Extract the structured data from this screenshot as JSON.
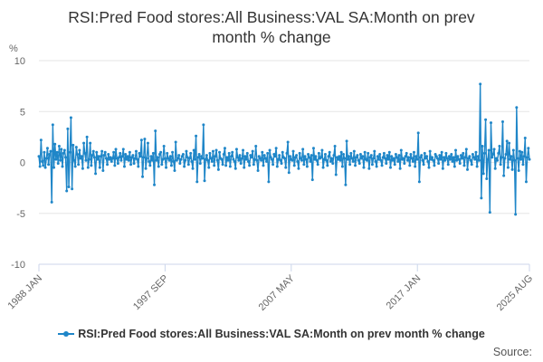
{
  "header": {
    "title_line1": "RSI:Pred Food stores:All Business:VAL SA:Month on prev",
    "title_line2": "month % change"
  },
  "footer": {
    "source_label": "Source:"
  },
  "colors": {
    "series": "#1f86c8",
    "grid": "#e6e6e6",
    "axis": "#ccd6eb"
  },
  "chart_data": {
    "type": "line",
    "title": "RSI:Pred Food stores:All Business:VAL SA:Month on prev month % change",
    "ylabel": "%",
    "xlabel": "",
    "ylim": [
      -10,
      10
    ],
    "yticks": [
      10,
      5,
      0,
      -5,
      -10
    ],
    "xlim": [
      "1988 JAN",
      "2025 AUG"
    ],
    "xticks": [
      {
        "label": "1988 JAN",
        "date": "1988-01"
      },
      {
        "label": "1997 SEP",
        "date": "1997-09"
      },
      {
        "label": "2007 MAY",
        "date": "2007-05"
      },
      {
        "label": "2017 JAN",
        "date": "2017-01"
      },
      {
        "label": "2025 AUG",
        "date": "2025-08"
      }
    ],
    "grid": true,
    "legend_position": "bottom",
    "series": [
      {
        "name": "RSI:Pred Food stores:All Business:VAL SA:Month on prev month % change",
        "start": "1988-01",
        "end": "2025-08",
        "frequency": "monthly",
        "values": [
          0.6,
          -0.4,
          2.2,
          0.1,
          -0.3,
          1.0,
          -0.5,
          0.4,
          1.4,
          -0.2,
          0.8,
          1.1,
          -3.9,
          3.7,
          -0.5,
          1.8,
          0.3,
          1.0,
          -0.1,
          1.6,
          0.2,
          1.3,
          -0.4,
          0.9,
          1.2,
          0.5,
          -2.8,
          3.3,
          -2.4,
          1.0,
          4.4,
          -2.6,
          1.7,
          0.2,
          -0.4,
          1.5,
          0.8,
          -0.2,
          1.2,
          0.4,
          0.6,
          -0.6,
          1.9,
          0.9,
          0.2,
          2.5,
          -0.5,
          0.3,
          1.9,
          -0.3,
          0.7,
          1.1,
          0.5,
          -1.1,
          1.0,
          0.3,
          0.6,
          -0.5,
          0.6,
          1.1,
          -0.8,
          0.7,
          1.0,
          0.4,
          -0.2,
          0.8,
          0.3,
          0.5,
          0.1,
          0.4,
          1.0,
          -0.3,
          1.3,
          0.4,
          -0.1,
          0.5,
          0.9,
          0.2,
          0.6,
          1.3,
          -0.4,
          0.8,
          0.3,
          0.6,
          0.2,
          1.0,
          -0.2,
          0.5,
          0.7,
          -0.1,
          0.4,
          1.1,
          0.3,
          -0.4,
          0.9,
          0.6,
          2.2,
          -1.4,
          0.5,
          2.3,
          -0.6,
          0.4,
          1.9,
          0.1,
          -0.3,
          0.6,
          0.2,
          0.9,
          -2.2,
          3.1,
          0.2,
          0.5,
          -0.4,
          0.8,
          1.0,
          -0.2,
          0.3,
          1.6,
          0.4,
          -0.5,
          0.9,
          0.4,
          0.2,
          0.6,
          -0.3,
          1.0,
          0.1,
          -0.8,
          2.0,
          0.2,
          0.4,
          0.7,
          -0.1,
          0.3,
          0.6,
          0.8,
          -0.4,
          0.2,
          1.1,
          0.5,
          -0.2,
          0.4,
          0.9,
          0.1,
          -0.6,
          1.2,
          0.3,
          2.6,
          -1.9,
          0.5,
          0.8,
          -0.1,
          0.6,
          0.4,
          3.7,
          -1.8,
          0.3,
          0.7,
          0.2,
          -0.5,
          0.9,
          0.4,
          0.1,
          1.1,
          -0.3,
          0.6,
          1.2,
          0.2,
          -0.7,
          1.0,
          0.4,
          0.3,
          -0.2,
          0.8,
          1.4,
          -0.3,
          0.5,
          0.2,
          0.9,
          -0.4,
          0.6,
          1.0,
          0.3,
          0.1,
          -0.6,
          1.3,
          0.5,
          0.2,
          0.7,
          -0.1,
          0.4,
          1.2,
          -0.5,
          0.6,
          0.3,
          0.9,
          0.1,
          -0.3,
          0.7,
          0.5,
          1.1,
          -0.2,
          0.3,
          1.6,
          0.2,
          -0.8,
          0.6,
          0.4,
          0.2,
          1.0,
          -0.3,
          0.7,
          0.4,
          0.1,
          0.9,
          -1.9,
          1.2,
          0.5,
          0.3,
          -0.2,
          0.8,
          0.6,
          1.4,
          -0.4,
          0.3,
          0.7,
          0.2,
          -0.1,
          1.0,
          0.5,
          0.4,
          -0.5,
          0.9,
          2.0,
          -1.0,
          0.6,
          0.3,
          0.2,
          1.1,
          -0.3,
          0.5,
          0.7,
          0.1,
          -0.6,
          0.9,
          0.4,
          0.2,
          1.3,
          -0.2,
          0.6,
          0.3,
          -0.4,
          0.8,
          0.5,
          0.1,
          0.7,
          -1.7,
          1.4,
          0.3,
          0.6,
          0.2,
          -0.2,
          0.9,
          0.4,
          0.5,
          1.2,
          -0.5,
          0.3,
          0.8,
          0.2,
          -0.3,
          0.6,
          1.0,
          0.1,
          0.4,
          -0.1,
          0.7,
          1.6,
          -1.2,
          0.5,
          0.3,
          0.6,
          0.2,
          1.0,
          -0.4,
          0.8,
          0.4,
          -2.2,
          2.1,
          0.3,
          0.6,
          -0.2,
          0.9,
          0.4,
          0.1,
          1.1,
          -0.3,
          0.5,
          0.7,
          0.2,
          -0.1,
          0.8,
          0.4,
          0.6,
          -0.5,
          1.0,
          0.3,
          0.2,
          0.9,
          -0.6,
          0.5,
          0.7,
          -0.2,
          0.4,
          1.1,
          0.1,
          -0.4,
          0.6,
          0.3,
          0.8,
          0.2,
          -0.3,
          0.5,
          0.9,
          0.4,
          -0.1,
          0.7,
          0.3,
          1.0,
          -0.5,
          0.6,
          0.2,
          0.4,
          -0.2,
          0.8,
          0.5,
          0.1,
          0.7,
          -0.6,
          1.2,
          0.3,
          0.4,
          -0.1,
          0.6,
          0.9,
          0.2,
          0.5,
          -0.3,
          0.8,
          0.4,
          0.1,
          1.0,
          -0.4,
          0.6,
          0.3,
          2.9,
          -1.9,
          0.5,
          0.7,
          0.2,
          -0.2,
          0.9,
          0.4,
          0.6,
          0.1,
          -0.5,
          1.1,
          0.3,
          0.5,
          0.2,
          -0.3,
          0.8,
          0.6,
          0.4,
          -0.1,
          0.7,
          0.3,
          1.0,
          -0.6,
          0.5,
          0.2,
          0.9,
          0.4,
          -0.2,
          0.6,
          0.3,
          0.8,
          0.1,
          0.5,
          -0.4,
          1.2,
          0.2,
          0.6,
          0.3,
          -0.1,
          0.7,
          0.4,
          0.9,
          -0.3,
          0.5,
          1.3,
          -0.7,
          0.4,
          0.6,
          0.2,
          -0.2,
          0.8,
          0.5,
          0.3,
          1.0,
          -0.4,
          0.6,
          0.2,
          7.7,
          -3.5,
          1.6,
          -1.1,
          0.9,
          4.2,
          -1.6,
          0.3,
          1.2,
          -4.9,
          3.9,
          0.5,
          0.8,
          1.3,
          -0.6,
          0.4,
          0.2,
          0.9,
          1.6,
          -0.2,
          0.5,
          4.0,
          -1.3,
          0.4,
          0.8,
          2.1,
          -0.5,
          1.9,
          0.3,
          0.6,
          -0.7,
          1.2,
          0.2,
          -5.1,
          5.4,
          0.4,
          -0.8,
          1.1,
          0.3,
          1.0,
          -0.2,
          0.6,
          2.4,
          -1.9,
          0.5,
          1.4,
          0.3
        ]
      }
    ]
  }
}
